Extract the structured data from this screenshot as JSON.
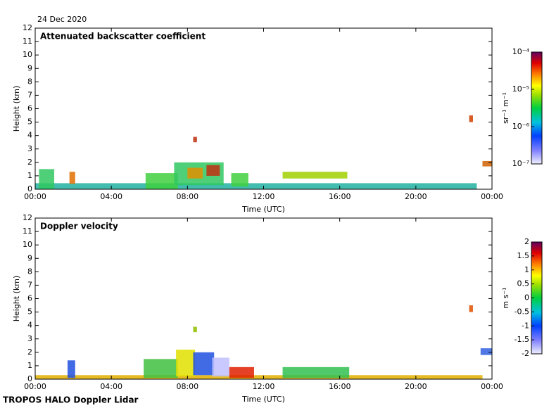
{
  "date": "24 Dec 2020",
  "footer": "TROPOS HALO Doppler Lidar",
  "chart_data": [
    {
      "type": "heatmap",
      "title": "Attenuated backscatter coefficient",
      "xlabel": "Time (UTC)",
      "ylabel": "Height (km)",
      "xlim": [
        0,
        24
      ],
      "xticks": [
        {
          "value": 0,
          "label": "00:00"
        },
        {
          "value": 4,
          "label": "04:00"
        },
        {
          "value": 8,
          "label": "08:00"
        },
        {
          "value": 12,
          "label": "12:00"
        },
        {
          "value": 16,
          "label": "16:00"
        },
        {
          "value": 20,
          "label": "20:00"
        },
        {
          "value": 24,
          "label": "00:00"
        }
      ],
      "ylim": [
        0,
        12
      ],
      "yticks": [
        0,
        1,
        2,
        3,
        4,
        5,
        6,
        7,
        8,
        9,
        10,
        11,
        12
      ],
      "colorbar_label": "sr⁻¹ m⁻¹",
      "colorbar_log": true,
      "clim": [
        1e-07,
        0.0001
      ],
      "colorbar_ticks": [
        {
          "value": 1e-07,
          "label": "10⁻⁷"
        },
        {
          "value": 1e-06,
          "label": "10⁻⁶"
        },
        {
          "value": 1e-05,
          "label": "10⁻⁵"
        },
        {
          "value": 0.0001,
          "label": "10⁻⁴"
        }
      ]
    },
    {
      "type": "heatmap",
      "title": "Doppler velocity",
      "xlabel": "Time (UTC)",
      "ylabel": "Height (km)",
      "xlim": [
        0,
        24
      ],
      "xticks": [
        {
          "value": 0,
          "label": "00:00"
        },
        {
          "value": 4,
          "label": "04:00"
        },
        {
          "value": 8,
          "label": "08:00"
        },
        {
          "value": 12,
          "label": "12:00"
        },
        {
          "value": 16,
          "label": "16:00"
        },
        {
          "value": 20,
          "label": "20:00"
        },
        {
          "value": 24,
          "label": "00:00"
        }
      ],
      "ylim": [
        0,
        12
      ],
      "yticks": [
        0,
        1,
        2,
        3,
        4,
        5,
        6,
        7,
        8,
        9,
        10,
        11,
        12
      ],
      "colorbar_label": "m s⁻¹",
      "colorbar_log": false,
      "clim": [
        -2,
        2
      ],
      "colorbar_ticks": [
        -2,
        -1.5,
        -1,
        -0.5,
        0,
        0.5,
        1,
        1.5,
        2
      ]
    }
  ]
}
